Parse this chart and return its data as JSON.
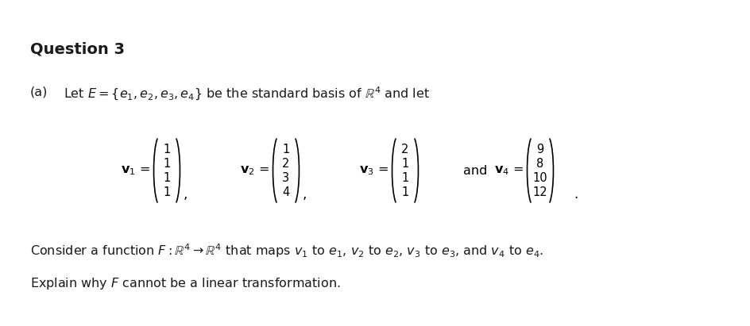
{
  "title": "Question 3",
  "background_color": "#ffffff",
  "text_color": "#1a1a1a",
  "fig_width": 9.45,
  "fig_height": 4.11,
  "part_label": "(a)",
  "line1": "Let $E = \\{e_1, e_2, e_3, e_4\\}$ be the standard basis of $\\mathbb{R}^4$ and let",
  "v1": [
    "1",
    "1",
    "1",
    "1"
  ],
  "v2": [
    "1",
    "2",
    "3",
    "4"
  ],
  "v3": [
    "2",
    "1",
    "1",
    "1"
  ],
  "v4": [
    "9",
    "8",
    "10",
    "12"
  ],
  "line2": "Consider a function $F : \\mathbb{R}^4 \\rightarrow \\mathbb{R}^4$ that maps $\\mathit{v}_1$ to $e_1$, $\\mathit{v}_2$ to $e_2$, $\\mathit{v}_3$ to $e_3$, and $\\mathit{v}_4$ to $e_4$.",
  "line3": "Explain why $F$ cannot be a linear transformation.",
  "vec_labels": [
    "$\\mathbf{v}_1$",
    "$\\mathbf{v}_2$",
    "$\\mathbf{v}_3$",
    "$\\mathbf{v}_4$"
  ]
}
